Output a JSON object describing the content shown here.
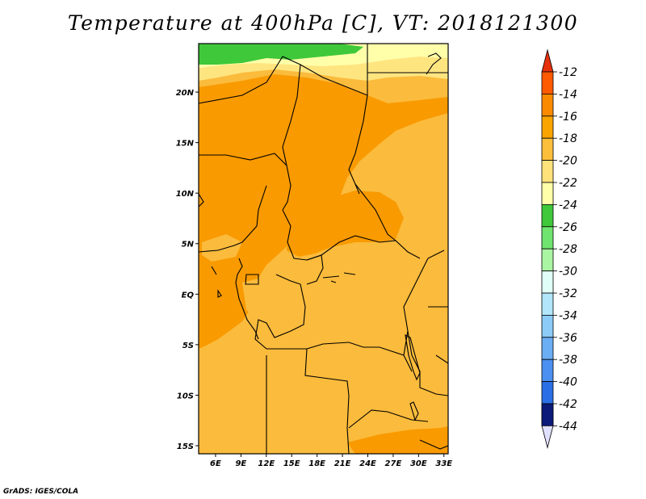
{
  "title": "Temperature at 400hPa [C], VT: 2018121300",
  "credit": "GrADS: IGES/COLA",
  "map": {
    "lon_labels": [
      "6E",
      "9E",
      "12E",
      "15E",
      "18E",
      "21E",
      "24E",
      "27E",
      "30E",
      "33E"
    ],
    "lat_labels": [
      "20N",
      "15N",
      "10N",
      "5N",
      "EQ",
      "5S",
      "10S",
      "15S"
    ],
    "extent": {
      "lon_min": 4,
      "lon_max": 33.5,
      "lat_min": -15.8,
      "lat_max": 24.8
    },
    "field_colors": {
      "minus22_to_minus20": "#ffffaa",
      "minus20_to_minus18": "#ffe580",
      "minus18_to_minus16": "#fbbb3c",
      "minus16_to_minus14": "#f99a00",
      "minus24_to_minus22": "#3fc83a"
    }
  },
  "colorbar": {
    "levels": [
      "-12",
      "-14",
      "-16",
      "-18",
      "-20",
      "-22",
      "-24",
      "-26",
      "-28",
      "-30",
      "-32",
      "-34",
      "-36",
      "-38",
      "-40",
      "-42",
      "-44"
    ],
    "colors": [
      "#ff5a00",
      "#fb8a00",
      "#f9a400",
      "#fbbf3c",
      "#ffe27a",
      "#ffffaa",
      "#3fc83a",
      "#6fe46f",
      "#a9f5a2",
      "#e0fff8",
      "#b1e6fb",
      "#8ccbf7",
      "#6baef4",
      "#4b8ff0",
      "#2a6fe6",
      "#1a51c8",
      "#0c1a78"
    ],
    "top_arrow_color": "#e6310c",
    "bottom_arrow_color": "#e0e0ff"
  }
}
